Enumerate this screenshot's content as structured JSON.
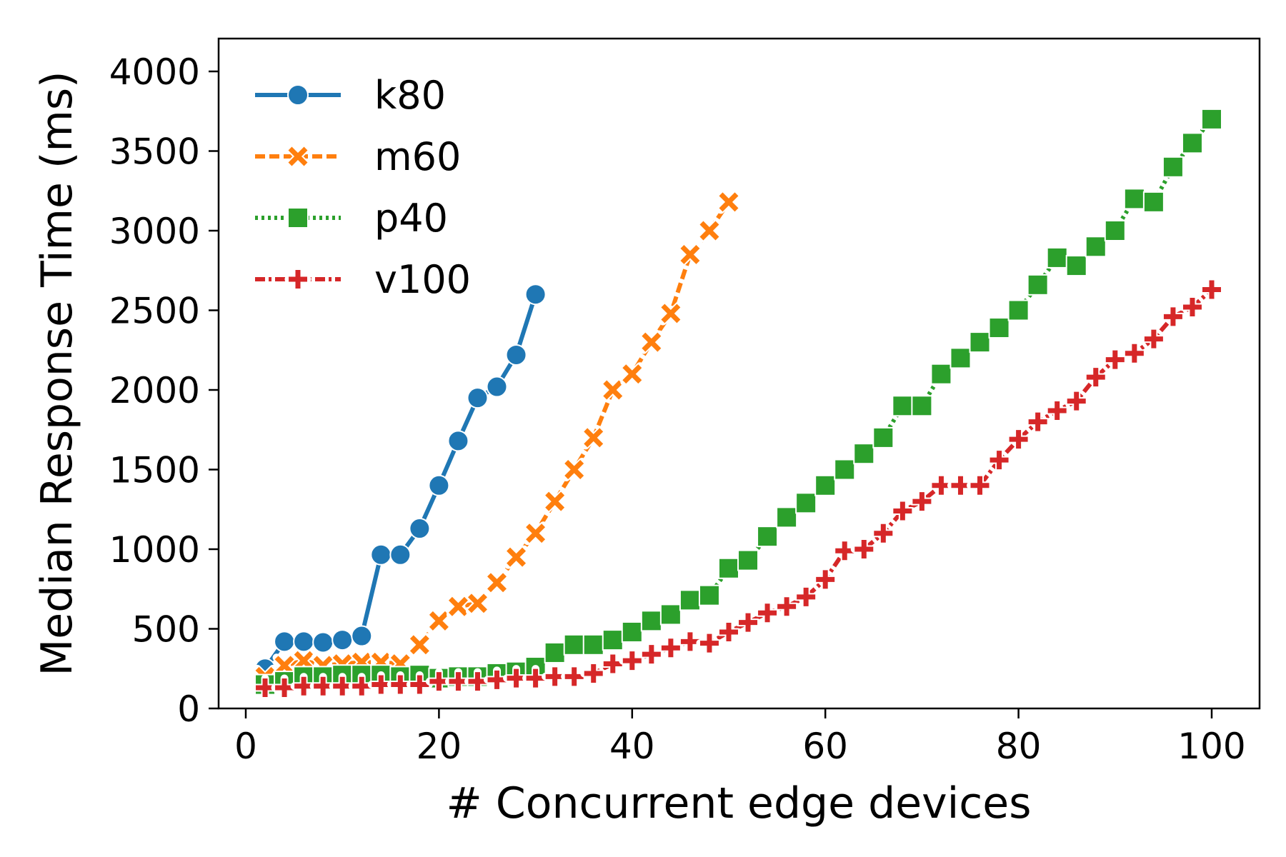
{
  "chart_data": {
    "type": "line",
    "title": "",
    "xlabel": "# Concurrent edge devices",
    "ylabel": "Median Response Time (ms)",
    "xlim": [
      -3,
      105
    ],
    "ylim": [
      0,
      4200
    ],
    "xticks": [
      0,
      20,
      40,
      60,
      80,
      100
    ],
    "yticks": [
      0,
      500,
      1000,
      1500,
      2000,
      2500,
      3000,
      3500,
      4000
    ],
    "grid": false,
    "legend_position": "top-left",
    "series": [
      {
        "name": "k80",
        "color": "#1f77b4",
        "marker": "circle",
        "linestyle": "solid",
        "x": [
          2,
          4,
          6,
          8,
          10,
          12,
          14,
          16,
          18,
          20,
          22,
          24,
          26,
          28,
          30
        ],
        "y": [
          250,
          420,
          420,
          415,
          430,
          455,
          965,
          965,
          1130,
          1400,
          1680,
          1950,
          2020,
          2220,
          2600
        ]
      },
      {
        "name": "m60",
        "color": "#ff7f0e",
        "marker": "x",
        "linestyle": "dashed",
        "x": [
          2,
          4,
          6,
          8,
          10,
          12,
          14,
          16,
          18,
          20,
          22,
          24,
          26,
          28,
          30,
          32,
          34,
          36,
          38,
          40,
          42,
          44,
          46,
          48,
          50
        ],
        "y": [
          200,
          270,
          300,
          270,
          280,
          290,
          290,
          280,
          400,
          550,
          640,
          660,
          790,
          950,
          1100,
          1300,
          1500,
          1700,
          2000,
          2100,
          2300,
          2480,
          2850,
          3000,
          3180
        ]
      },
      {
        "name": "p40",
        "color": "#2ca02c",
        "marker": "square",
        "linestyle": "dotted",
        "x": [
          2,
          4,
          6,
          8,
          10,
          12,
          14,
          16,
          18,
          20,
          22,
          24,
          26,
          28,
          30,
          32,
          34,
          36,
          38,
          40,
          42,
          44,
          46,
          48,
          50,
          52,
          54,
          56,
          58,
          60,
          62,
          64,
          66,
          68,
          70,
          72,
          74,
          76,
          78,
          80,
          82,
          84,
          86,
          88,
          90,
          92,
          94,
          96,
          98,
          100
        ],
        "y": [
          150,
          170,
          200,
          200,
          210,
          210,
          210,
          200,
          210,
          190,
          200,
          200,
          220,
          230,
          260,
          350,
          400,
          400,
          430,
          480,
          550,
          590,
          680,
          710,
          880,
          930,
          1080,
          1200,
          1290,
          1400,
          1500,
          1600,
          1700,
          1900,
          1900,
          2100,
          2200,
          2300,
          2390,
          2500,
          2660,
          2830,
          2780,
          2900,
          3000,
          3200,
          3180,
          3400,
          3550,
          3700
        ]
      },
      {
        "name": "v100",
        "color": "#d62728",
        "marker": "plus",
        "linestyle": "dashdot",
        "x": [
          2,
          4,
          6,
          8,
          10,
          12,
          14,
          16,
          18,
          20,
          22,
          24,
          26,
          28,
          30,
          32,
          34,
          36,
          38,
          40,
          42,
          44,
          46,
          48,
          50,
          52,
          54,
          56,
          58,
          60,
          62,
          64,
          66,
          68,
          70,
          72,
          74,
          76,
          78,
          80,
          82,
          84,
          86,
          88,
          90,
          92,
          94,
          96,
          98,
          100
        ],
        "y": [
          130,
          130,
          140,
          140,
          140,
          140,
          150,
          150,
          150,
          170,
          170,
          170,
          180,
          190,
          190,
          200,
          200,
          220,
          280,
          300,
          340,
          380,
          420,
          410,
          480,
          540,
          600,
          640,
          700,
          810,
          990,
          1000,
          1100,
          1240,
          1300,
          1400,
          1400,
          1400,
          1560,
          1690,
          1800,
          1870,
          1930,
          2080,
          2190,
          2230,
          2320,
          2460,
          2520,
          2630
        ]
      }
    ]
  }
}
